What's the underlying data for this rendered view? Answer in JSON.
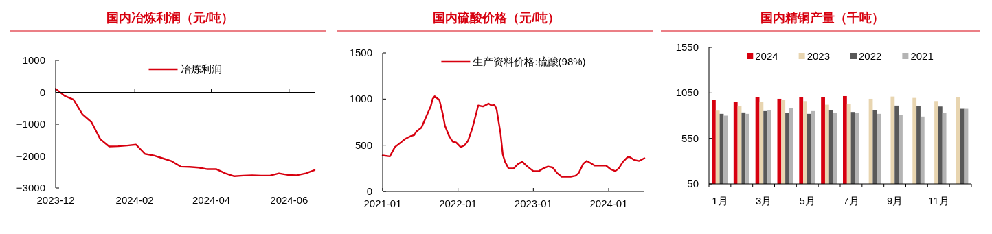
{
  "chart_data": [
    {
      "type": "line",
      "title": "国内冶炼利润（元/吨）",
      "legend": "top",
      "series": [
        {
          "name": "冶炼利润",
          "color": "#d7000f",
          "x": [
            "2023-12-01",
            "2023-12-08",
            "2023-12-15",
            "2023-12-22",
            "2023-12-29",
            "2024-01-05",
            "2024-01-12",
            "2024-01-19",
            "2024-01-26",
            "2024-02-02",
            "2024-02-09",
            "2024-02-16",
            "2024-02-23",
            "2024-03-01",
            "2024-03-08",
            "2024-03-15",
            "2024-03-22",
            "2024-03-29",
            "2024-04-05",
            "2024-04-12",
            "2024-04-19",
            "2024-04-26",
            "2024-05-03",
            "2024-05-10",
            "2024-05-17",
            "2024-05-24",
            "2024-05-31",
            "2024-06-07",
            "2024-06-14",
            "2024-06-21"
          ],
          "values": [
            110,
            -110,
            -230,
            -690,
            -930,
            -1470,
            -1700,
            -1690,
            -1670,
            -1640,
            -1930,
            -1980,
            -2070,
            -2160,
            -2330,
            -2340,
            -2360,
            -2410,
            -2410,
            -2540,
            -2630,
            -2610,
            -2600,
            -2610,
            -2610,
            -2540,
            -2590,
            -2600,
            -2540,
            -2440
          ]
        }
      ],
      "xlim": [
        "2023-12-01",
        "2024-06-21"
      ],
      "xticks": [
        "2023-12",
        "2024-02",
        "2024-04",
        "2024-06"
      ],
      "ylim": [
        -3000,
        1000
      ],
      "yticks": [
        -3000,
        -2000,
        -1000,
        0,
        1000
      ]
    },
    {
      "type": "line",
      "title": "国内硫酸价格（元/吨）",
      "legend": "top",
      "series": [
        {
          "name": "生产资料价格:硫酸(98%)",
          "color": "#d7000f",
          "x": [
            "2021-01-01",
            "2021-02-05",
            "2021-03-01",
            "2021-03-30",
            "2021-04-21",
            "2021-05-19",
            "2021-06-03",
            "2021-06-14",
            "2021-07-08",
            "2021-07-31",
            "2021-08-22",
            "2021-08-31",
            "2021-09-10",
            "2021-10-03",
            "2021-10-19",
            "2021-10-30",
            "2021-11-19",
            "2021-12-06",
            "2021-12-23",
            "2022-01-14",
            "2022-02-02",
            "2022-02-19",
            "2022-03-11",
            "2022-04-01",
            "2022-04-09",
            "2022-05-02",
            "2022-05-29",
            "2022-06-13",
            "2022-06-26",
            "2022-07-07",
            "2022-07-26",
            "2022-08-06",
            "2022-08-17",
            "2022-09-03",
            "2022-09-28",
            "2022-10-20",
            "2022-11-09",
            "2022-12-03",
            "2023-01-01",
            "2023-01-28",
            "2023-02-19",
            "2023-03-13",
            "2023-04-04",
            "2023-04-26",
            "2023-05-18",
            "2023-06-09",
            "2023-07-01",
            "2023-07-24",
            "2023-08-09",
            "2023-08-31",
            "2023-09-16",
            "2023-10-03",
            "2023-10-25",
            "2023-11-22",
            "2023-12-19",
            "2024-01-11",
            "2024-02-02",
            "2024-02-19",
            "2024-03-10",
            "2024-04-01",
            "2024-04-14",
            "2024-05-05",
            "2024-05-28",
            "2024-06-22"
          ],
          "values": [
            390,
            380,
            480,
            530,
            570,
            600,
            610,
            650,
            690,
            810,
            920,
            1000,
            1030,
            990,
            840,
            710,
            600,
            540,
            530,
            480,
            500,
            550,
            680,
            860,
            930,
            920,
            950,
            930,
            940,
            890,
            630,
            400,
            320,
            250,
            250,
            300,
            320,
            270,
            220,
            220,
            250,
            270,
            260,
            200,
            160,
            160,
            160,
            170,
            200,
            300,
            330,
            310,
            280,
            280,
            280,
            240,
            220,
            250,
            320,
            370,
            370,
            340,
            330,
            360
          ]
        }
      ],
      "xlim": [
        "2021-01-01",
        "2024-06-22"
      ],
      "xticks": [
        "2021-01",
        "2022-01",
        "2023-01",
        "2024-01"
      ],
      "ylim": [
        0,
        1500
      ],
      "yticks": [
        0,
        500,
        1000,
        1500
      ]
    },
    {
      "type": "bar",
      "title": "国内精铜产量（千吨）",
      "legend": "top",
      "categories": [
        "1月",
        null,
        "3月",
        null,
        "5月",
        null,
        "7月",
        null,
        "9月",
        null,
        "11月",
        null
      ],
      "series": [
        {
          "name": "2024",
          "color": "#d7000f",
          "values": [
            970,
            950,
            1000,
            985,
            1005,
            1005,
            1015,
            null,
            null,
            null,
            null,
            null
          ]
        },
        {
          "name": "2023",
          "color": "#e8d5b0",
          "values": [
            855,
            905,
            950,
            970,
            960,
            920,
            925,
            985,
            1010,
            995,
            960,
            1000
          ]
        },
        {
          "name": "2022",
          "color": "#595959",
          "values": [
            820,
            835,
            850,
            830,
            820,
            860,
            840,
            860,
            910,
            905,
            900,
            875
          ]
        },
        {
          "name": "2021",
          "color": "#b4b4b4",
          "values": [
            800,
            820,
            860,
            880,
            850,
            830,
            830,
            820,
            805,
            790,
            830,
            875
          ]
        }
      ],
      "ylim": [
        50,
        1550
      ],
      "yticks": [
        50,
        550,
        1050,
        1550
      ]
    }
  ]
}
